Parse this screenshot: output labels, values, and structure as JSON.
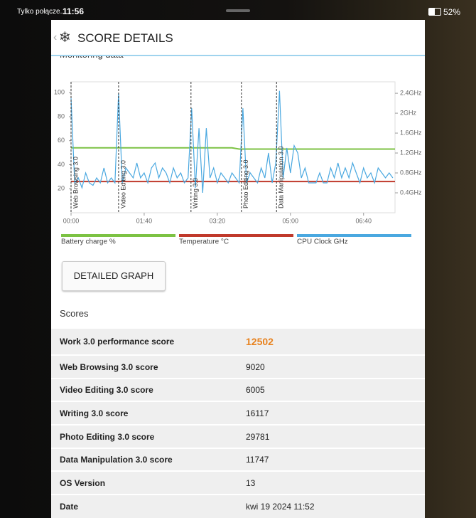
{
  "status_bar": {
    "carrier": "Tylko połącze...",
    "time": "11:56",
    "battery": "52%"
  },
  "header": {
    "title": "SCORE DETAILS"
  },
  "section_title": "Monitoring data",
  "chart": {
    "type": "line",
    "xlim": [
      0,
      443
    ],
    "xticks": [
      {
        "value": 0,
        "label": "00:00"
      },
      {
        "value": 100,
        "label": "01:40"
      },
      {
        "value": 200,
        "label": "03:20"
      },
      {
        "value": 300,
        "label": "05:00"
      },
      {
        "value": 400,
        "label": "06:40"
      }
    ],
    "ylim": [
      0,
      109
    ],
    "yticks": [
      20,
      40,
      60,
      80,
      100
    ],
    "y2lim": [
      0,
      2.63
    ],
    "y2ticks": [
      {
        "value": 0.4,
        "label": "0.4GHz"
      },
      {
        "value": 0.8,
        "label": "0.8GHz"
      },
      {
        "value": 1.2,
        "label": "1.2GHz"
      },
      {
        "value": 1.6,
        "label": "1.6GHz"
      },
      {
        "value": 2,
        "label": "2GHz"
      },
      {
        "value": 2.4,
        "label": "2.4GHz"
      }
    ],
    "annotations": [
      {
        "x": 0,
        "text": "Web Browsing 3.0"
      },
      {
        "x": 65,
        "text": "Video Editing 3.0"
      },
      {
        "x": 164,
        "text": "Writing 3.0"
      },
      {
        "x": 233,
        "text": "Photo Editing 3.0"
      },
      {
        "x": 281,
        "text": "Data Manipulation 3.0"
      }
    ],
    "series": [
      {
        "name": "Battery charge %",
        "color": "#7cc243",
        "x": [
          0,
          220,
          230,
          443
        ],
        "values": [
          54,
          54,
          53,
          53
        ]
      },
      {
        "name": "Temperature °C",
        "color": "#c0392b",
        "x": [
          0,
          443
        ],
        "values": [
          26,
          26
        ]
      },
      {
        "name": "CPU Clock GHz",
        "color": "#4aa8e0",
        "axis": "y2",
        "x": [
          0,
          5,
          10,
          15,
          20,
          25,
          30,
          35,
          40,
          45,
          50,
          55,
          60,
          65,
          70,
          75,
          80,
          85,
          90,
          95,
          100,
          105,
          110,
          115,
          120,
          125,
          130,
          135,
          140,
          145,
          150,
          155,
          160,
          165,
          170,
          175,
          180,
          185,
          190,
          195,
          200,
          205,
          210,
          215,
          220,
          225,
          230,
          235,
          240,
          245,
          250,
          255,
          260,
          265,
          270,
          275,
          280,
          285,
          290,
          295,
          300,
          305,
          310,
          315,
          320,
          325,
          330,
          335,
          340,
          345,
          350,
          355,
          360,
          365,
          370,
          375,
          380,
          385,
          390,
          395,
          400,
          405,
          410,
          415,
          420,
          425,
          430,
          435,
          440
        ],
        "values": [
          2.3,
          0.6,
          0.7,
          0.5,
          0.8,
          0.6,
          0.55,
          0.7,
          0.6,
          0.9,
          0.6,
          0.7,
          0.6,
          2.4,
          0.6,
          0.9,
          0.8,
          0.7,
          1.0,
          0.7,
          0.8,
          0.6,
          0.9,
          1.0,
          0.7,
          0.9,
          0.8,
          0.6,
          0.9,
          0.7,
          0.8,
          0.6,
          0.7,
          2.1,
          0.5,
          1.7,
          0.4,
          1.7,
          0.7,
          0.9,
          0.6,
          0.8,
          0.7,
          0.6,
          0.8,
          0.7,
          0.6,
          2.1,
          0.6,
          0.8,
          0.7,
          0.6,
          0.9,
          0.7,
          1.2,
          0.6,
          1.0,
          2.45,
          0.7,
          1.3,
          0.8,
          1.35,
          1.2,
          0.7,
          0.9,
          0.6,
          0.6,
          0.6,
          0.8,
          0.6,
          0.6,
          0.9,
          0.7,
          1.0,
          0.7,
          0.9,
          0.7,
          1.0,
          0.8,
          0.6,
          0.9,
          0.7,
          0.8,
          0.6,
          0.9,
          0.8,
          0.7,
          0.8,
          0.7
        ]
      }
    ]
  },
  "button": "DETAILED GRAPH",
  "scores_title": "Scores",
  "table": {
    "rows": [
      [
        "Work 3.0 performance score",
        12502
      ],
      [
        "Web Browsing 3.0 score",
        9020
      ],
      [
        "Video Editing 3.0 score",
        6005
      ],
      [
        "Writing 3.0 score",
        16117
      ],
      [
        "Photo Editing 3.0 score",
        29781
      ],
      [
        "Data Manipulation 3.0 score",
        11747
      ],
      [
        "OS Version",
        13
      ],
      [
        "Date",
        "kwi 19 2024 11:52"
      ]
    ]
  }
}
